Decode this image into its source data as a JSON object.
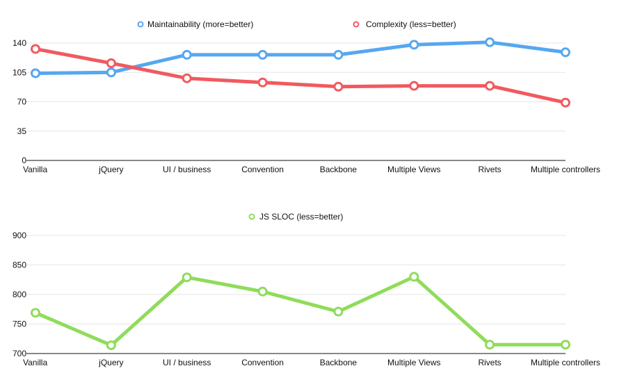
{
  "chart_data": [
    {
      "type": "line",
      "title": "",
      "xlabel": "",
      "ylabel": "",
      "categories": [
        "Vanilla",
        "jQuery",
        "UI / business",
        "Convention",
        "Backbone",
        "Multiple Views",
        "Rivets",
        "Multiple controllers"
      ],
      "ylim": [
        0,
        140
      ],
      "yticks": [
        0,
        35,
        70,
        105,
        140
      ],
      "grid": true,
      "legend_position": "top",
      "series": [
        {
          "name": "Maintainability (more=better)",
          "color": "#56a7f0",
          "values": [
            104,
            105,
            126,
            126,
            126,
            138,
            141,
            129
          ]
        },
        {
          "name": "Complexity (less=better)",
          "color": "#f05a5f",
          "values": [
            133,
            116,
            98,
            93,
            88,
            89,
            89,
            69
          ]
        }
      ]
    },
    {
      "type": "line",
      "title": "",
      "xlabel": "",
      "ylabel": "",
      "categories": [
        "Vanilla",
        "jQuery",
        "UI / business",
        "Convention",
        "Backbone",
        "Multiple Views",
        "Rivets",
        "Multiple controllers"
      ],
      "ylim": [
        700,
        900
      ],
      "yticks": [
        700,
        750,
        800,
        850,
        900
      ],
      "grid": true,
      "legend_position": "top",
      "series": [
        {
          "name": "JS SLOC (less=better)",
          "color": "#8fdc5a",
          "values": [
            769,
            714,
            829,
            805,
            771,
            830,
            715,
            715
          ]
        }
      ]
    }
  ]
}
